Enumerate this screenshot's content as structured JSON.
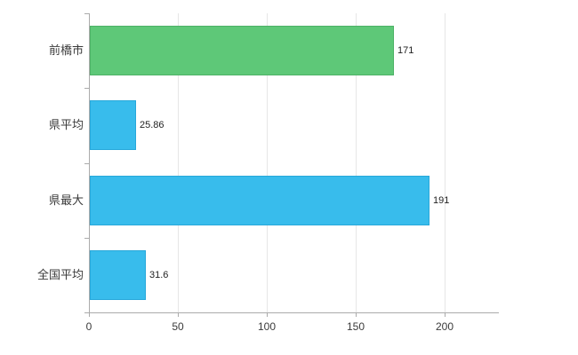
{
  "chart_data": {
    "type": "bar",
    "orientation": "horizontal",
    "title": "",
    "xlabel": "",
    "ylabel": "",
    "categories": [
      "前橋市",
      "県平均",
      "県最大",
      "全国平均"
    ],
    "values": [
      171,
      25.86,
      191,
      31.6
    ],
    "value_labels": [
      "171",
      "25.86",
      "191",
      "31.6"
    ],
    "series": [
      {
        "name": "",
        "values": [
          171,
          25.86,
          191,
          31.6
        ],
        "colors": [
          "#5ec878",
          "#38bcec",
          "#38bcec",
          "#38bcec"
        ],
        "border_colors": [
          "#4db266",
          "#27a8da",
          "#27a8da",
          "#27a8da"
        ]
      }
    ],
    "xlim": [
      0,
      230
    ],
    "xticks": [
      0,
      50,
      100,
      150,
      200
    ],
    "xtick_labels": [
      "0",
      "50",
      "100",
      "150",
      "200"
    ],
    "grid": true,
    "legend": "none",
    "colors": {
      "background": "#ffffff",
      "axis": "#ababab",
      "gridline": "#e6e6e6",
      "text": "#3a3a3a",
      "value_text": "#222222",
      "bar_green": "#5ec878",
      "bar_blue": "#38bcec"
    }
  }
}
